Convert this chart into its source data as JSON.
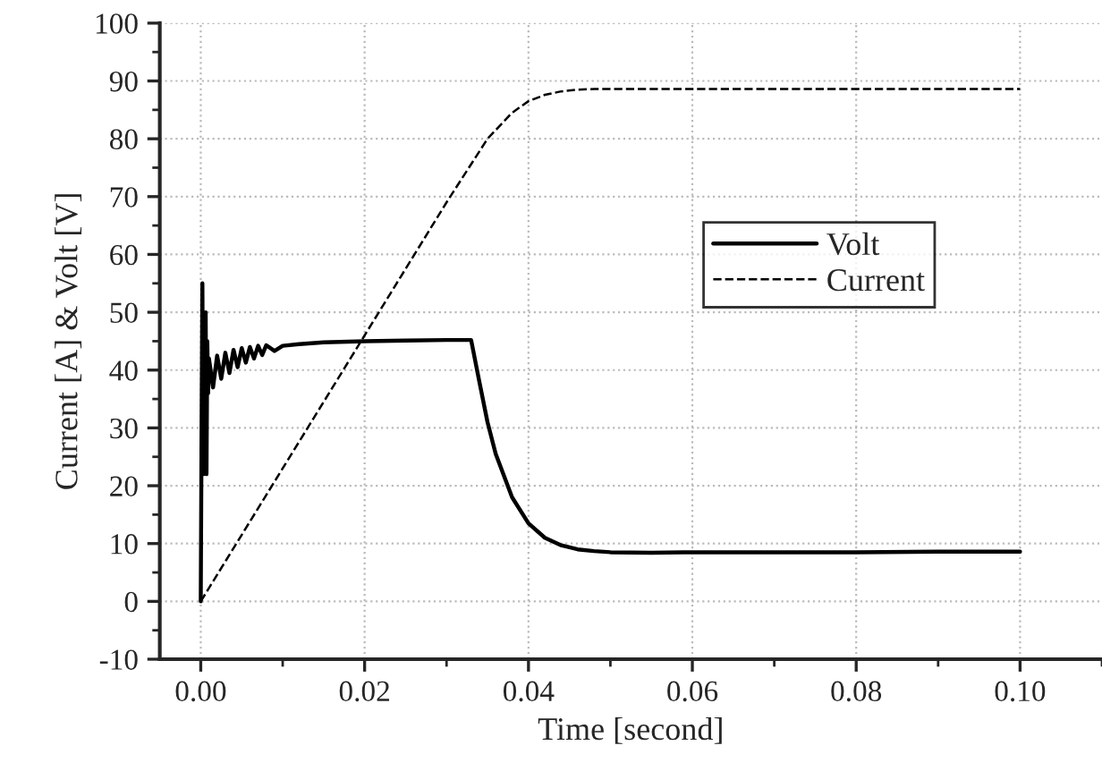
{
  "chart_data": {
    "type": "line",
    "xlabel": "Time [second]",
    "ylabel": "Current [A] & Volt [V]",
    "xlim": [
      -0.005,
      0.11
    ],
    "ylim": [
      -10,
      100
    ],
    "xticks": [
      {
        "value": 0,
        "label": "0.00"
      },
      {
        "value": 0.02,
        "label": "0.02"
      },
      {
        "value": 0.04,
        "label": "0.04"
      },
      {
        "value": 0.06,
        "label": "0.06"
      },
      {
        "value": 0.08,
        "label": "0.08"
      },
      {
        "value": 0.1,
        "label": "0.10"
      }
    ],
    "yticks": [
      -10,
      0,
      10,
      20,
      30,
      40,
      50,
      60,
      70,
      80,
      90,
      100
    ],
    "grid": true,
    "legend": "right",
    "marker": "none",
    "series": [
      {
        "name": "Volt",
        "color": "#000000",
        "line_style": "solid",
        "x": [
          0,
          0.0001,
          0.0002,
          0.0003,
          0.0004,
          0.0005,
          0.0006,
          0.0007,
          0.0008,
          0.0009,
          0.001,
          0.0015,
          0.002,
          0.0025,
          0.003,
          0.0035,
          0.004,
          0.0045,
          0.005,
          0.0055,
          0.006,
          0.0065,
          0.007,
          0.0075,
          0.008,
          0.009,
          0.01,
          0.012,
          0.015,
          0.02,
          0.025,
          0.03,
          0.033,
          0.034,
          0.035,
          0.036,
          0.038,
          0.04,
          0.042,
          0.044,
          0.046,
          0.048,
          0.05,
          0.055,
          0.06,
          0.07,
          0.08,
          0.09,
          0.1
        ],
        "values": [
          0,
          30,
          55,
          22,
          48,
          23,
          50,
          22,
          45,
          36,
          42,
          37,
          42.5,
          38.5,
          43,
          39.5,
          43.5,
          40.5,
          43.8,
          41.3,
          44,
          42,
          44.2,
          42.6,
          44.3,
          43.3,
          44.2,
          44.5,
          44.8,
          45,
          45.1,
          45.2,
          45.2,
          38,
          31,
          25.5,
          18,
          13.5,
          11,
          9.7,
          9,
          8.7,
          8.5,
          8.4,
          8.5,
          8.5,
          8.5,
          8.6,
          8.6
        ]
      },
      {
        "name": "Current",
        "color": "#000000",
        "line_style": "dashed",
        "x": [
          0,
          0.01,
          0.02,
          0.03,
          0.035,
          0.038,
          0.04,
          0.042,
          0.044,
          0.046,
          0.048,
          0.05,
          0.06,
          0.08,
          0.1
        ],
        "values": [
          0,
          23,
          46,
          69,
          80,
          84.5,
          86.5,
          87.6,
          88.2,
          88.5,
          88.6,
          88.6,
          88.6,
          88.6,
          88.6
        ]
      }
    ]
  }
}
